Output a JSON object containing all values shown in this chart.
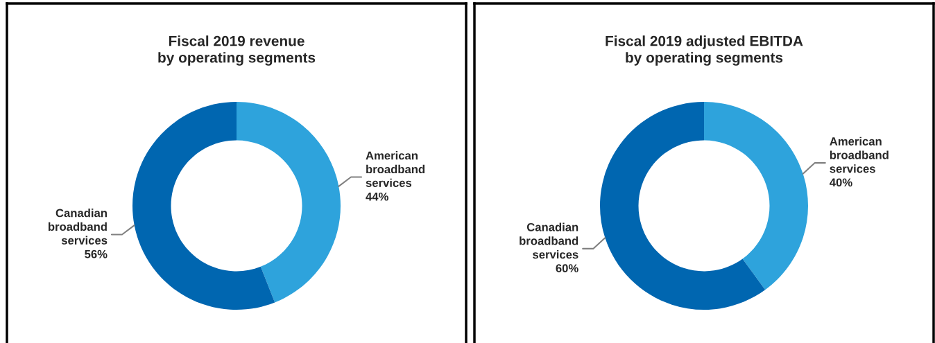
{
  "chart_data": [
    {
      "type": "donut",
      "title": "Fiscal 2019 revenue\nby operating segments",
      "categories": [
        "American\nbroadband\nservices",
        "Canadian\nbroadband\nservices"
      ],
      "values": [
        44,
        56
      ],
      "value_labels": [
        "44%",
        "56%"
      ],
      "colors": [
        "#2ea3dc",
        "#0066b0"
      ]
    },
    {
      "type": "donut",
      "title": "Fiscal 2019 adjusted EBITDA\nby operating segments",
      "categories": [
        "American\nbroadband\nservices",
        "Canadian\nbroadband\nservices"
      ],
      "values": [
        40,
        60
      ],
      "value_labels": [
        "40%",
        "60%"
      ],
      "colors": [
        "#2ea3dc",
        "#0066b0"
      ]
    }
  ]
}
